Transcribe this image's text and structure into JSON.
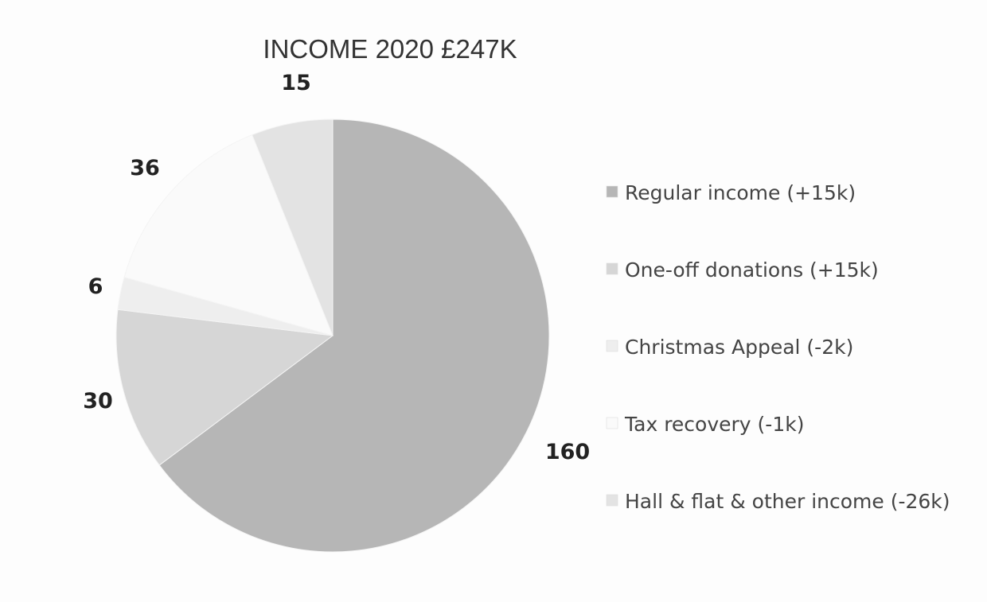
{
  "chart_data": {
    "type": "pie",
    "title": "INCOME 2020 £247K",
    "slices": [
      {
        "label": "Regular income (+15k)",
        "value": 160,
        "value_label": "160",
        "color": "#b6b6b6"
      },
      {
        "label": "One-off donations (+15k)",
        "value": 30,
        "value_label": "30",
        "color": "#d6d6d6"
      },
      {
        "label": "Christmas Appeal (-2k)",
        "value": 6,
        "value_label": "6",
        "color": "#eeeeee"
      },
      {
        "label": "Tax recovery (-1k)",
        "value": 36,
        "value_label": "36",
        "color": "#fafafa"
      },
      {
        "label": "Hall & flat & other income (-26k)",
        "value": 15,
        "value_label": "15",
        "color": "#e3e3e3"
      }
    ],
    "legend_position": "right"
  }
}
